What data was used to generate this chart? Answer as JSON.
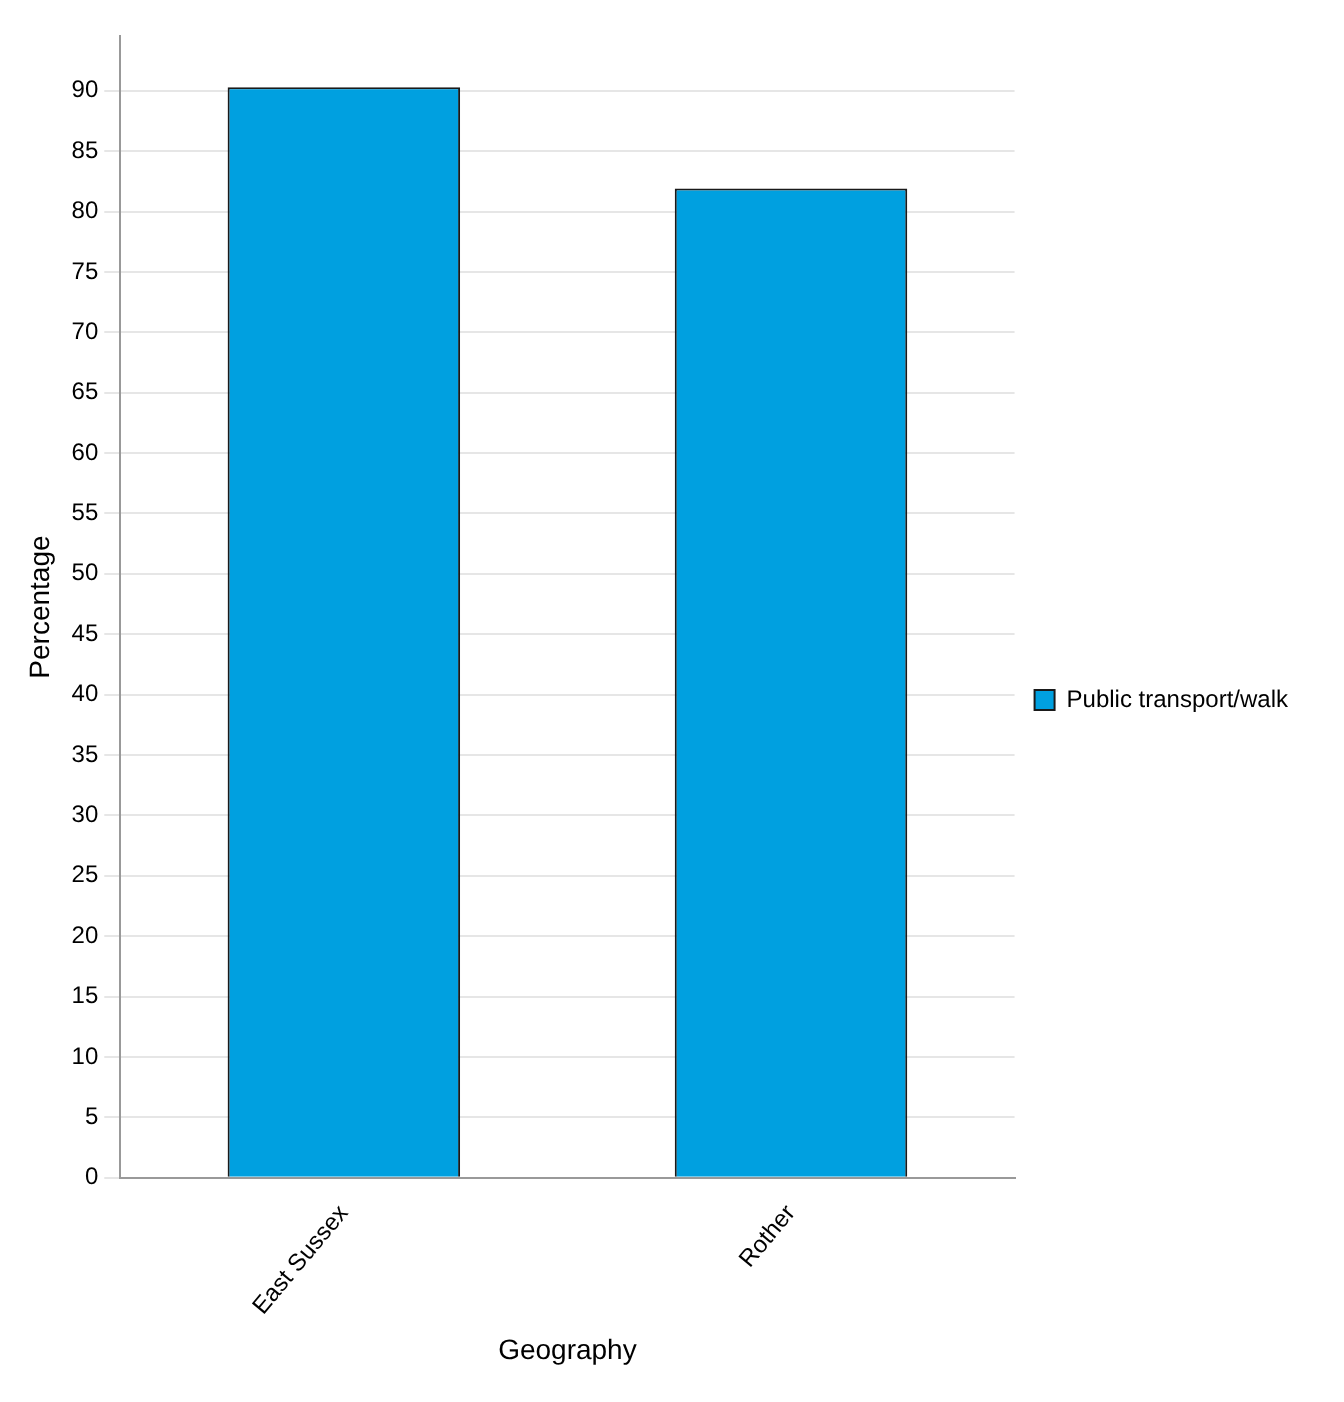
{
  "chart_data": {
    "type": "bar",
    "xlabel": "Geography",
    "ylabel": "Percentage",
    "categories": [
      "East Sussex",
      "Rother"
    ],
    "series": [
      {
        "name": "Public transport/walk",
        "color": "#00a0e0",
        "values": [
          90.3,
          81.9
        ]
      }
    ],
    "ylim": [
      0,
      94.5
    ],
    "yticks": [
      0,
      5,
      10,
      15,
      20,
      25,
      30,
      35,
      40,
      45,
      50,
      55,
      60,
      65,
      70,
      75,
      80,
      85,
      90
    ],
    "grid": "y",
    "legend": "right"
  }
}
